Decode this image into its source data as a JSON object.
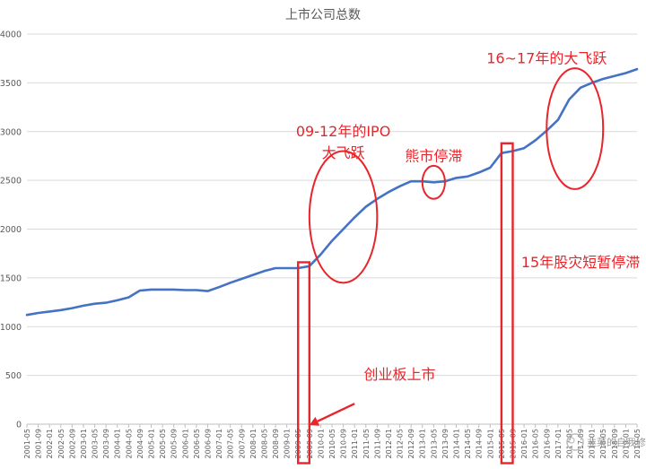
{
  "chart_data": {
    "type": "line",
    "title": "上市公司总数",
    "xlabel": "",
    "ylabel": "",
    "ylim": [
      0,
      4000
    ],
    "yticks": [
      "0",
      "500",
      "1000",
      "1500",
      "2000",
      "2500",
      "3000",
      "3500",
      "4000"
    ],
    "grid": true,
    "legend": "none",
    "line_color": "#4472c4",
    "annotation_color": "#e8252b",
    "x_start": "2001-05",
    "x_end": "2019-05",
    "xticks": [
      "2001-05",
      "2001-09",
      "2002-01",
      "2002-05",
      "2002-09",
      "2003-01",
      "2003-05",
      "2003-09",
      "2004-01",
      "2004-05",
      "2004-09",
      "2005-01",
      "2005-05",
      "2005-09",
      "2006-01",
      "2006-05",
      "2006-09",
      "2007-01",
      "2007-05",
      "2007-09",
      "2008-01",
      "2008-05",
      "2008-09",
      "2009-01",
      "2009-05",
      "2009-09",
      "2010-01",
      "2010-05",
      "2010-09",
      "2011-01",
      "2011-05",
      "2011-09",
      "2012-01",
      "2012-05",
      "2012-09",
      "2013-01",
      "2013-05",
      "2013-09",
      "2014-01",
      "2014-05",
      "2014-09",
      "2015-01",
      "2015-05",
      "2015-09",
      "2016-01",
      "2016-05",
      "2016-09",
      "2017-01",
      "2017-05",
      "2017-09",
      "2018-01",
      "2018-05",
      "2018-09",
      "2019-01",
      "2019-05"
    ],
    "series": [
      {
        "x": [
          "2001-05",
          "2001-09",
          "2002-01",
          "2002-05",
          "2002-09",
          "2003-01",
          "2003-05",
          "2003-09",
          "2004-01",
          "2004-05",
          "2004-09",
          "2005-01",
          "2005-05",
          "2005-09",
          "2006-01",
          "2006-05",
          "2006-09",
          "2007-01",
          "2007-05",
          "2007-09",
          "2008-01",
          "2008-05",
          "2008-09",
          "2009-01",
          "2009-05",
          "2009-09",
          "2010-01",
          "2010-05",
          "2010-09",
          "2011-01",
          "2011-05",
          "2011-09",
          "2012-01",
          "2012-05",
          "2012-09",
          "2013-01",
          "2013-05",
          "2013-09",
          "2014-01",
          "2014-05",
          "2014-09",
          "2015-01",
          "2015-05",
          "2015-09",
          "2016-01",
          "2016-05",
          "2016-09",
          "2017-01",
          "2017-05",
          "2017-09",
          "2018-01",
          "2018-05",
          "2018-09",
          "2019-01",
          "2019-05"
        ],
        "values": [
          1120,
          1140,
          1155,
          1170,
          1190,
          1215,
          1235,
          1245,
          1270,
          1300,
          1370,
          1380,
          1380,
          1380,
          1375,
          1375,
          1365,
          1405,
          1450,
          1490,
          1530,
          1570,
          1600,
          1600,
          1600,
          1620,
          1740,
          1880,
          2000,
          2120,
          2230,
          2310,
          2380,
          2440,
          2490,
          2490,
          2480,
          2490,
          2525,
          2540,
          2580,
          2630,
          2780,
          2800,
          2830,
          2910,
          3010,
          3120,
          3330,
          3450,
          3500,
          3540,
          3570,
          3600,
          3640
        ]
      }
    ],
    "annotations": [
      {
        "text": "09-12年的IPO",
        "x": "2010-09",
        "y": 2950
      },
      {
        "text": "大飞跃",
        "x": "2010-09",
        "y": 2730
      },
      {
        "text": "熊市停滞",
        "x": "2013-05",
        "y": 2700
      },
      {
        "text": "16~17年的大飞跃",
        "x": "2016-09",
        "y": 3700
      },
      {
        "text": "15年股灾短暂停滞",
        "x": "2017-09",
        "y": 1610
      },
      {
        "text": "创业板上市",
        "x": "2012-05",
        "y": 460
      }
    ],
    "highlight_ellipses": [
      {
        "x_from": "2009-09",
        "x_to": "2011-09",
        "y_from": 1450,
        "y_to": 2800
      },
      {
        "x_from": "2013-01",
        "x_to": "2013-09",
        "y_from": 2310,
        "y_to": 2650
      },
      {
        "x_from": "2016-09",
        "x_to": "2018-05",
        "y_from": 2410,
        "y_to": 3650
      }
    ],
    "highlight_boxes": [
      {
        "x_from": "2009-05",
        "x_to": "2009-09",
        "y_from": -400,
        "y_to": 1660
      },
      {
        "x_from": "2015-05",
        "x_to": "2015-09",
        "y_from": -400,
        "y_to": 2880
      }
    ],
    "arrow": {
      "from_x": "2011-01",
      "from_y": 210,
      "to_x": "2009-09",
      "to_y": -10
    }
  },
  "watermark": {
    "text": "韭菜的自我修养"
  }
}
